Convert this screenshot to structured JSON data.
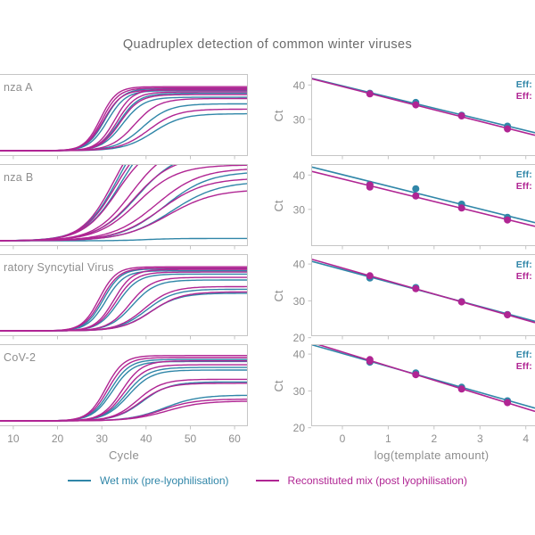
{
  "title": "Quadruplex detection of common winter viruses",
  "colors": {
    "wet": "#3086a8",
    "recon": "#b02593",
    "axis": "#c5c5c5",
    "tick_text": "#8e8e8e",
    "title_text": "#6b6b6b"
  },
  "legend": {
    "wet_label": "Wet mix (pre-lyophilisation)",
    "recon_label": "Reconstituted mix (post lyophilisation)"
  },
  "chart_data": {
    "figure_title": "Quadruplex detection of common winter viruses",
    "left_column": {
      "type": "line",
      "xlabel": "Cycle",
      "x_domain": [
        7,
        63
      ],
      "x_ticks": [
        10,
        20,
        30,
        40,
        50,
        60
      ],
      "curve_param_format": [
        "midpoint_cycle",
        "plateau_fraction",
        "steepness"
      ],
      "panels": [
        {
          "label": "nza A",
          "wet_curves": [
            [
              30.7,
              0.94,
              0.5
            ],
            [
              31.3,
              0.91,
              0.48
            ],
            [
              33.9,
              0.87,
              0.45
            ],
            [
              34.7,
              0.81,
              0.42
            ],
            [
              39.2,
              0.71,
              0.33
            ],
            [
              41.6,
              0.56,
              0.3
            ]
          ],
          "recon_curves": [
            [
              29.7,
              0.97,
              0.55
            ],
            [
              30.1,
              0.95,
              0.53
            ],
            [
              30.4,
              0.92,
              0.5
            ],
            [
              32.9,
              0.93,
              0.5
            ],
            [
              33.5,
              0.89,
              0.48
            ],
            [
              34.1,
              0.85,
              0.45
            ],
            [
              37.4,
              0.79,
              0.37
            ],
            [
              40.6,
              0.63,
              0.31
            ]
          ]
        },
        {
          "label": "nza B",
          "wet_curves": [
            [
              33.7,
              1.9,
              0.26
            ],
            [
              34.3,
              1.75,
              0.25
            ],
            [
              38.0,
              1.35,
              0.22
            ],
            [
              44.2,
              1.05,
              0.2
            ],
            [
              45.8,
              0.9,
              0.19
            ],
            [
              40.0,
              0.035,
              0.3
            ]
          ],
          "recon_curves": [
            [
              32.7,
              1.8,
              0.28
            ],
            [
              33.1,
              1.65,
              0.27
            ],
            [
              33.5,
              1.5,
              0.26
            ],
            [
              36.7,
              1.45,
              0.24
            ],
            [
              37.3,
              1.28,
              0.23
            ],
            [
              38.0,
              1.15,
              0.22
            ],
            [
              42.3,
              1.1,
              0.2
            ],
            [
              43.3,
              0.95,
              0.2
            ],
            [
              45.0,
              0.78,
              0.19
            ]
          ]
        },
        {
          "label": "ratory Syncytial Virus",
          "wet_curves": [
            [
              30.3,
              0.94,
              0.5
            ],
            [
              30.9,
              0.91,
              0.48
            ],
            [
              33.7,
              0.86,
              0.44
            ],
            [
              36.9,
              0.77,
              0.38
            ],
            [
              40.1,
              0.63,
              0.32
            ],
            [
              40.9,
              0.57,
              0.3
            ]
          ],
          "recon_curves": [
            [
              29.4,
              0.97,
              0.52
            ],
            [
              29.9,
              0.95,
              0.5
            ],
            [
              32.7,
              0.93,
              0.48
            ],
            [
              33.2,
              0.89,
              0.46
            ],
            [
              36.3,
              0.81,
              0.4
            ],
            [
              39.6,
              0.67,
              0.33
            ],
            [
              41.2,
              0.59,
              0.3
            ]
          ]
        },
        {
          "label": "CoV-2",
          "wet_curves": [
            [
              31.9,
              0.93,
              0.46
            ],
            [
              32.4,
              0.9,
              0.44
            ],
            [
              35.5,
              0.81,
              0.4
            ],
            [
              36.0,
              0.77,
              0.38
            ],
            [
              39.2,
              0.59,
              0.33
            ],
            [
              44.1,
              0.39,
              0.26
            ]
          ],
          "recon_curves": [
            [
              30.9,
              0.99,
              0.5
            ],
            [
              31.4,
              0.96,
              0.48
            ],
            [
              34.5,
              0.91,
              0.44
            ],
            [
              35.0,
              0.85,
              0.42
            ],
            [
              38.1,
              0.63,
              0.36
            ],
            [
              38.7,
              0.57,
              0.34
            ],
            [
              43.6,
              0.33,
              0.27
            ],
            [
              44.7,
              0.3,
              0.25
            ]
          ]
        }
      ]
    },
    "right_column": {
      "type": "scatter",
      "xlabel": "log(template amount)",
      "ylabel": "Ct",
      "x_domain": [
        -0.68,
        4.2
      ],
      "x_ticks": [
        0,
        1,
        2,
        3,
        4
      ],
      "fit_line": "linear regression through points, drawn across full x range",
      "panels": [
        {
          "eff_wet": "Eff:",
          "eff_recon": "Eff:",
          "y_domain": [
            19.3,
            43.2
          ],
          "y_ticks": [
            30,
            40
          ],
          "wet_points": [
            [
              0.6,
              37.6
            ],
            [
              1.6,
              34.9
            ],
            [
              2.6,
              31.2
            ],
            [
              3.6,
              28.0
            ]
          ],
          "recon_points": [
            [
              0.6,
              37.4
            ],
            [
              1.6,
              34.2
            ],
            [
              2.6,
              31.0
            ],
            [
              3.6,
              27.2
            ]
          ]
        },
        {
          "eff_wet": "Eff:",
          "eff_recon": "Eff:",
          "y_domain": [
            19.3,
            43.2
          ],
          "y_ticks": [
            30,
            40
          ],
          "wet_points": [
            [
              0.6,
              37.3
            ],
            [
              1.6,
              36.0
            ],
            [
              2.6,
              31.5
            ],
            [
              3.6,
              27.7
            ]
          ],
          "recon_points": [
            [
              0.6,
              37.1
            ],
            [
              0.6,
              36.5
            ],
            [
              1.6,
              33.9
            ],
            [
              2.6,
              30.4
            ],
            [
              3.6,
              26.9
            ]
          ]
        },
        {
          "eff_wet": "Eff:",
          "eff_recon": "Eff:",
          "y_domain": [
            20.4,
            42.7
          ],
          "y_ticks": [
            20,
            30,
            40
          ],
          "wet_points": [
            [
              0.6,
              36.2
            ],
            [
              1.6,
              33.6
            ],
            [
              2.6,
              29.8
            ],
            [
              3.6,
              26.3
            ]
          ],
          "recon_points": [
            [
              0.6,
              36.8
            ],
            [
              1.6,
              33.3
            ],
            [
              2.6,
              29.7
            ],
            [
              3.6,
              26.2
            ]
          ]
        },
        {
          "eff_wet": "Eff:",
          "eff_recon": "Eff:",
          "y_domain": [
            20.4,
            42.7
          ],
          "y_ticks": [
            20,
            30,
            40
          ],
          "wet_points": [
            [
              0.6,
              37.8
            ],
            [
              1.6,
              34.9
            ],
            [
              2.6,
              31.0
            ],
            [
              3.6,
              27.3
            ]
          ],
          "recon_points": [
            [
              0.6,
              38.5
            ],
            [
              0.6,
              38.1
            ],
            [
              1.6,
              34.4
            ],
            [
              2.6,
              30.5
            ],
            [
              3.6,
              26.8
            ]
          ]
        }
      ]
    }
  }
}
